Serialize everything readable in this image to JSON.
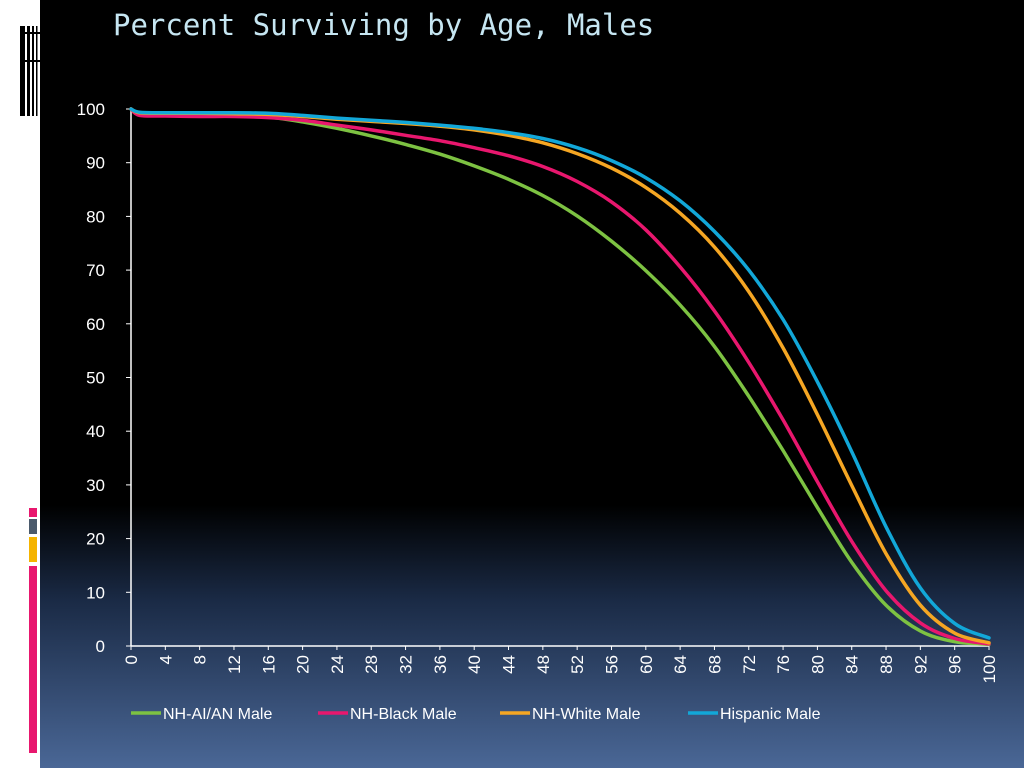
{
  "slide": {
    "title": "Percent Surviving by Age, Males",
    "accent_colors": [
      "#e8176e",
      "#4b5a6c",
      "#f5b400",
      "#e8176e"
    ]
  },
  "chart_data": {
    "type": "line",
    "title": "Percent Surviving by Age, Males",
    "xlabel": "",
    "ylabel": "",
    "xlim": [
      0,
      100
    ],
    "ylim": [
      0,
      100
    ],
    "x_ticks": [
      0,
      4,
      8,
      12,
      16,
      20,
      24,
      28,
      32,
      36,
      40,
      44,
      48,
      52,
      56,
      60,
      64,
      68,
      72,
      76,
      80,
      84,
      88,
      92,
      96,
      100
    ],
    "y_ticks": [
      0,
      10,
      20,
      30,
      40,
      50,
      60,
      70,
      80,
      90,
      100
    ],
    "legend_position": "bottom",
    "grid": false,
    "series": [
      {
        "name": "NH-AI/AN Male",
        "color": "#7dc242",
        "x": [
          0,
          1,
          4,
          8,
          12,
          16,
          20,
          24,
          28,
          32,
          36,
          40,
          44,
          48,
          52,
          56,
          60,
          64,
          68,
          72,
          76,
          80,
          84,
          88,
          92,
          96,
          100
        ],
        "y": [
          100,
          99.0,
          98.9,
          98.8,
          98.7,
          98.5,
          97.6,
          96.4,
          95.0,
          93.4,
          91.6,
          89.4,
          86.9,
          83.9,
          80.1,
          75.4,
          69.9,
          63.5,
          55.8,
          46.5,
          36.4,
          25.8,
          15.6,
          7.6,
          2.8,
          0.8,
          0.3
        ]
      },
      {
        "name": "NH-Black Male",
        "color": "#e8176e",
        "x": [
          0,
          1,
          4,
          8,
          12,
          16,
          20,
          24,
          28,
          32,
          36,
          40,
          44,
          48,
          52,
          56,
          60,
          64,
          68,
          72,
          76,
          80,
          84,
          88,
          92,
          96,
          100
        ],
        "y": [
          100,
          98.8,
          98.7,
          98.6,
          98.6,
          98.4,
          97.9,
          97.0,
          96.1,
          95.1,
          94.1,
          92.8,
          91.3,
          89.3,
          86.5,
          82.7,
          77.5,
          70.6,
          62.4,
          52.8,
          42.1,
          30.6,
          19.5,
          10.3,
          4.3,
          1.4,
          0.4
        ]
      },
      {
        "name": "NH-White Male",
        "color": "#f5a623",
        "x": [
          0,
          1,
          4,
          8,
          12,
          16,
          20,
          24,
          28,
          32,
          36,
          40,
          44,
          48,
          52,
          56,
          60,
          64,
          68,
          72,
          76,
          80,
          84,
          88,
          92,
          96,
          100
        ],
        "y": [
          100,
          99.3,
          99.2,
          99.2,
          99.1,
          99.0,
          98.6,
          98.1,
          97.7,
          97.3,
          96.8,
          96.1,
          95.1,
          93.7,
          91.7,
          89.0,
          85.4,
          80.6,
          74.3,
          66.0,
          55.5,
          43.1,
          29.9,
          17.2,
          7.6,
          2.4,
          0.6
        ]
      },
      {
        "name": "Hispanic Male",
        "color": "#12a7d8",
        "x": [
          0,
          1,
          4,
          8,
          12,
          16,
          20,
          24,
          28,
          32,
          36,
          40,
          44,
          48,
          52,
          56,
          60,
          64,
          68,
          72,
          76,
          80,
          84,
          88,
          92,
          96,
          100
        ],
        "y": [
          100,
          99.4,
          99.3,
          99.3,
          99.3,
          99.2,
          98.8,
          98.3,
          97.9,
          97.5,
          97.0,
          96.4,
          95.6,
          94.5,
          92.8,
          90.4,
          87.2,
          82.9,
          77.2,
          70.0,
          60.8,
          49.2,
          36.2,
          22.2,
          10.8,
          4.2,
          1.5
        ]
      }
    ]
  }
}
